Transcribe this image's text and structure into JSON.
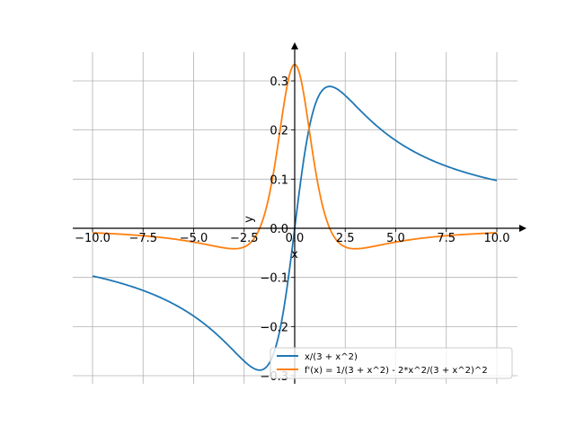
{
  "chart_data": {
    "type": "line",
    "title": "",
    "xlabel": "x",
    "ylabel": "y",
    "xlim": [
      -11,
      11
    ],
    "ylim": [
      -0.32,
      0.36
    ],
    "grid": true,
    "legend_position": "bottom-right",
    "x_ticks": [
      "−10.0",
      "−7.5",
      "−5.0",
      "−2.5",
      "0.0",
      "2.5",
      "5.0",
      "7.5",
      "10.0"
    ],
    "x_tick_values": [
      -10,
      -7.5,
      -5,
      -2.5,
      0,
      2.5,
      5,
      7.5,
      10
    ],
    "y_ticks": [
      "−0.3",
      "−0.2",
      "−0.1",
      "0.0",
      "0.1",
      "0.2",
      "0.3"
    ],
    "y_tick_values": [
      -0.3,
      -0.2,
      -0.1,
      0,
      0.1,
      0.2,
      0.3
    ],
    "x_domain": [
      -10,
      10
    ],
    "series": [
      {
        "name": "x/(3 + x^2)",
        "color": "#1f77b4",
        "expr": "f",
        "key_points": {
          "x": [
            -10,
            -1.732,
            0,
            1.732,
            10
          ],
          "y": [
            -0.097,
            -0.289,
            0,
            0.289,
            0.097
          ]
        }
      },
      {
        "name": "f'(x) = 1/(3 + x^2) - 2*x^2/(3 + x^2)^2",
        "color": "#ff7f0e",
        "expr": "df",
        "key_points": {
          "x": [
            -10,
            -3,
            0,
            3,
            10
          ],
          "y": [
            -0.0094,
            -0.0417,
            0.333,
            -0.0417,
            -0.0094
          ]
        }
      }
    ]
  }
}
